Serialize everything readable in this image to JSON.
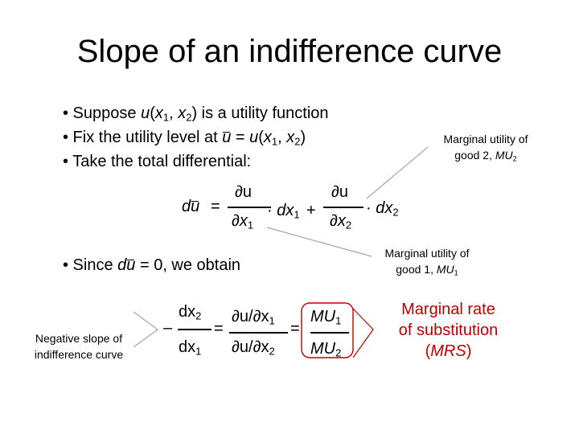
{
  "title": "Slope of an indifference curve",
  "bullets": {
    "b1_pre": "• Suppose ",
    "b1_u": "u",
    "b1_open": "(",
    "b1_x1": "x",
    "b1_sub1": "1",
    "b1_comma": ", ",
    "b1_x2": "x",
    "b1_sub2": "2",
    "b1_post": ") is a utility function",
    "b2_pre": "• Fix the utility level at ",
    "b2_ubar": "u",
    "b2_eq": " = ",
    "b2_u": "u",
    "b2_open": "(",
    "b2_x1": "x",
    "b2_sub1": "1",
    "b2_comma": ", ",
    "b2_x2": "x",
    "b2_sub2": "2",
    "b2_close": ")",
    "b3": "• Take the total differential:",
    "b4_pre": "• Since ",
    "b4_d": "d",
    "b4_ubar": "u",
    "b4_post": " = 0, we obtain"
  },
  "differential": {
    "lhs_d": "d",
    "lhs_u": "u",
    "lhs_eq": "=",
    "frac1_num": "∂u",
    "frac1_den": "∂x",
    "frac1_den_sub": "1",
    "mid": "· dx",
    "mid_sub": "1",
    "plus": "+",
    "frac2_num": "∂u",
    "frac2_den": "∂x",
    "frac2_den_sub": "2",
    "tail": "· dx",
    "tail_sub": "2"
  },
  "result": {
    "minus": "–",
    "dx2": "dx",
    "dx2_sub": "2",
    "dx1": "dx",
    "dx1_sub": "1",
    "eq1": "=",
    "num": "∂u/∂x",
    "num_sub": "1",
    "den": "∂u/∂x",
    "den_sub": "2",
    "eq2": "=",
    "mu1": "MU",
    "mu1_sub": "1",
    "mu2": "MU",
    "mu2_sub": "2"
  },
  "annotations": {
    "mu2_line1": "Marginal utility of",
    "mu2_line2": "good 2, ",
    "mu2_line2_it": "MU",
    "mu2_line2_sub": "2",
    "mu1_line1": "Marginal utility of",
    "mu1_line2": "good 1, ",
    "mu1_line2_it": "MU",
    "mu1_line2_sub": "1",
    "slope_line1": "Negative slope of",
    "slope_line2": "indifference curve",
    "mrs_line1": "Marginal rate",
    "mrs_line2": "of substitution",
    "mrs_open": "(",
    "mrs_it": "MRS",
    "mrs_close": ")"
  },
  "colors": {
    "accent": "#c00000",
    "text": "#000000",
    "connector": "#a6a6a6"
  }
}
